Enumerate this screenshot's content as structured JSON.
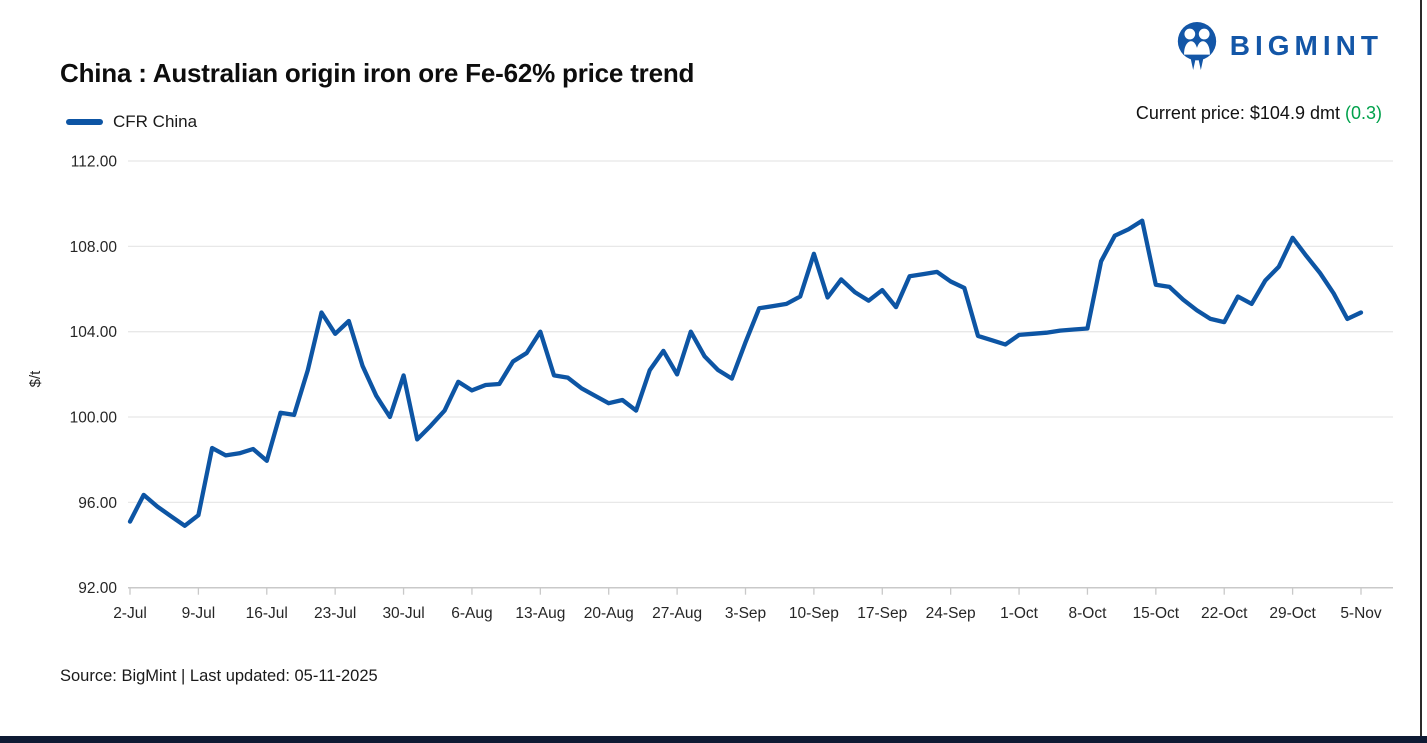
{
  "header": {
    "title": "China : Australian origin iron ore Fe-62% price trend",
    "logo_text": "BIGMINT",
    "current_price_text": "Current price: $104.9 dmt",
    "current_price_change": "(0.3)"
  },
  "legend": {
    "label": "CFR China"
  },
  "footer": {
    "source": "Source: BigMint | Last updated: 05-11-2025"
  },
  "colors": {
    "line_blue": "#0D55A4",
    "logo_blue": "#1356A7",
    "positive_green": "#00A14B",
    "gridline": "#E8E8E8",
    "axis_line": "#C9C9C9",
    "tick_text": "#262626",
    "bottom_bar": "#0E1A33"
  },
  "chart_data": {
    "type": "line",
    "title": "China : Australian origin iron ore Fe-62% price trend",
    "xlabel": "",
    "ylabel": "$/t",
    "ylim": [
      92,
      112
    ],
    "grid": true,
    "legend_position": "top-left",
    "yticks": [
      "112.00",
      "108.00",
      "104.00",
      "100.00",
      "96.00",
      "92.00"
    ],
    "xticks": [
      "2-Jul",
      "9-Jul",
      "16-Jul",
      "23-Jul",
      "30-Jul",
      "6-Aug",
      "13-Aug",
      "20-Aug",
      "27-Aug",
      "3-Sep",
      "10-Sep",
      "17-Sep",
      "24-Sep",
      "1-Oct",
      "8-Oct",
      "15-Oct",
      "22-Oct",
      "29-Oct",
      "5-Nov"
    ],
    "series": [
      {
        "name": "CFR China",
        "color": "#0D55A4",
        "x": [
          "2-Jul",
          "3-Jul",
          "4-Jul",
          "7-Jul",
          "8-Jul",
          "9-Jul",
          "10-Jul",
          "11-Jul",
          "14-Jul",
          "15-Jul",
          "16-Jul",
          "17-Jul",
          "18-Jul",
          "21-Jul",
          "22-Jul",
          "23-Jul",
          "24-Jul",
          "25-Jul",
          "28-Jul",
          "29-Jul",
          "30-Jul",
          "31-Jul",
          "1-Aug",
          "4-Aug",
          "5-Aug",
          "6-Aug",
          "7-Aug",
          "8-Aug",
          "11-Aug",
          "12-Aug",
          "13-Aug",
          "14-Aug",
          "15-Aug",
          "18-Aug",
          "19-Aug",
          "20-Aug",
          "21-Aug",
          "22-Aug",
          "25-Aug",
          "26-Aug",
          "27-Aug",
          "28-Aug",
          "29-Aug",
          "1-Sep",
          "2-Sep",
          "3-Sep",
          "4-Sep",
          "5-Sep",
          "8-Sep",
          "9-Sep",
          "10-Sep",
          "11-Sep",
          "12-Sep",
          "15-Sep",
          "16-Sep",
          "17-Sep",
          "18-Sep",
          "19-Sep",
          "22-Sep",
          "23-Sep",
          "24-Sep",
          "25-Sep",
          "26-Sep",
          "29-Sep",
          "30-Sep",
          "1-Oct",
          "2-Oct",
          "3-Oct",
          "6-Oct",
          "7-Oct",
          "8-Oct",
          "9-Oct",
          "10-Oct",
          "13-Oct",
          "14-Oct",
          "15-Oct",
          "16-Oct",
          "17-Oct",
          "20-Oct",
          "21-Oct",
          "22-Oct",
          "23-Oct",
          "24-Oct",
          "27-Oct",
          "28-Oct",
          "29-Oct",
          "30-Oct",
          "31-Oct",
          "3-Nov",
          "4-Nov",
          "5-Nov"
        ],
        "values": [
          95.1,
          96.35,
          95.8,
          95.35,
          94.9,
          95.4,
          98.55,
          98.2,
          98.3,
          98.5,
          97.95,
          100.2,
          100.1,
          102.2,
          104.9,
          103.9,
          104.5,
          102.4,
          101.0,
          100.0,
          101.95,
          98.95,
          99.6,
          100.3,
          101.65,
          101.25,
          101.5,
          101.55,
          102.6,
          103.0,
          104.0,
          101.95,
          101.85,
          101.35,
          101.0,
          100.65,
          100.8,
          100.3,
          102.2,
          103.1,
          102.0,
          104.0,
          102.85,
          102.2,
          101.8,
          103.5,
          105.1,
          105.2,
          105.3,
          105.65,
          107.65,
          105.6,
          106.45,
          105.85,
          105.45,
          105.95,
          105.15,
          106.6,
          106.7,
          106.8,
          106.35,
          106.05,
          103.8,
          103.6,
          103.4,
          103.85,
          103.9,
          103.95,
          104.05,
          104.1,
          104.15,
          107.3,
          108.5,
          108.8,
          109.2,
          106.2,
          106.1,
          105.5,
          105.0,
          104.6,
          104.45,
          105.65,
          105.3,
          106.4,
          107.05,
          108.4,
          107.55,
          106.75,
          105.8,
          104.6,
          104.9
        ]
      }
    ]
  }
}
